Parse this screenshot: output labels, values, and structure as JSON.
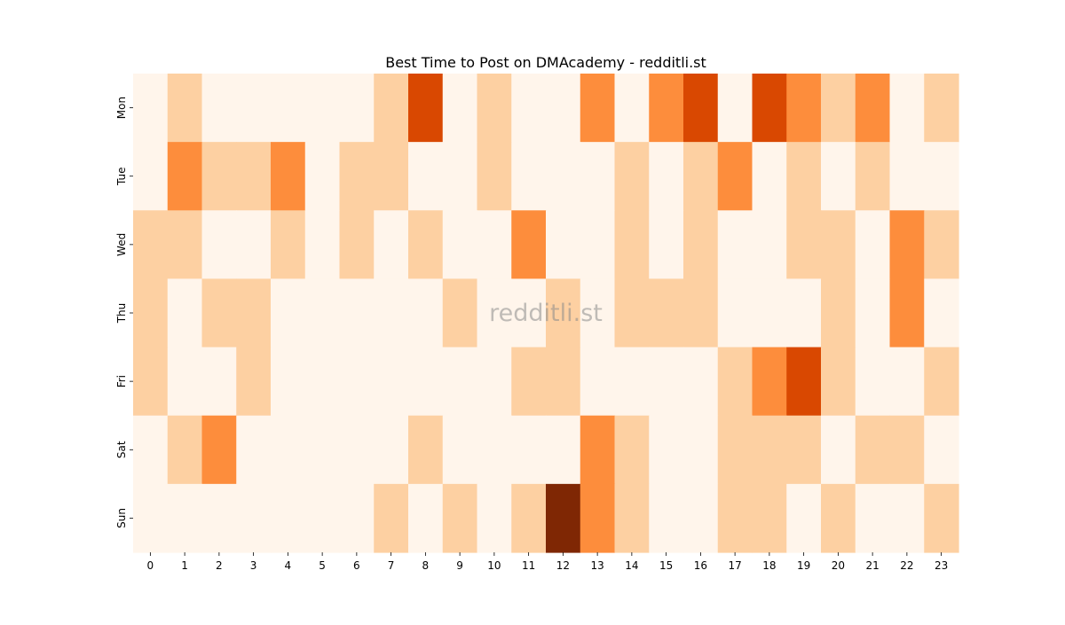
{
  "chart_data": {
    "type": "heatmap",
    "title": "Best Time to Post on DMAcademy - redditli.st",
    "watermark": "redditli.st",
    "xlabel": "",
    "ylabel": "",
    "x": [
      "0",
      "1",
      "2",
      "3",
      "4",
      "5",
      "6",
      "7",
      "8",
      "9",
      "10",
      "11",
      "12",
      "13",
      "14",
      "15",
      "16",
      "17",
      "18",
      "19",
      "20",
      "21",
      "22",
      "23"
    ],
    "y": [
      "Mon",
      "Tue",
      "Wed",
      "Thu",
      "Fri",
      "Sat",
      "Sun"
    ],
    "values": [
      [
        0,
        1,
        0,
        0,
        0,
        0,
        0,
        1,
        3,
        0,
        1,
        0,
        0,
        2,
        0,
        2,
        3,
        0,
        3,
        2,
        1,
        2,
        0,
        1
      ],
      [
        0,
        2,
        1,
        1,
        2,
        0,
        1,
        1,
        0,
        0,
        1,
        0,
        0,
        0,
        1,
        0,
        1,
        2,
        0,
        1,
        0,
        1,
        0,
        0
      ],
      [
        1,
        1,
        0,
        0,
        1,
        0,
        1,
        0,
        1,
        0,
        0,
        2,
        0,
        0,
        1,
        0,
        1,
        0,
        0,
        1,
        1,
        0,
        2,
        1
      ],
      [
        1,
        0,
        1,
        1,
        0,
        0,
        0,
        0,
        0,
        1,
        0,
        0,
        1,
        0,
        1,
        1,
        1,
        0,
        0,
        0,
        1,
        0,
        2,
        0
      ],
      [
        1,
        0,
        0,
        1,
        0,
        0,
        0,
        0,
        0,
        0,
        0,
        1,
        1,
        0,
        0,
        0,
        0,
        1,
        2,
        3,
        1,
        0,
        0,
        1
      ],
      [
        0,
        1,
        2,
        0,
        0,
        0,
        0,
        0,
        1,
        0,
        0,
        0,
        0,
        2,
        1,
        0,
        0,
        1,
        1,
        1,
        0,
        1,
        1,
        0
      ],
      [
        0,
        0,
        0,
        0,
        0,
        0,
        0,
        1,
        0,
        1,
        0,
        1,
        4,
        2,
        1,
        0,
        0,
        1,
        1,
        0,
        1,
        0,
        0,
        1
      ]
    ],
    "colormap": [
      "#fff5eb",
      "#fdd0a2",
      "#fd8d3c",
      "#d94801",
      "#7f2704"
    ],
    "colorbar": false,
    "grid": false
  }
}
